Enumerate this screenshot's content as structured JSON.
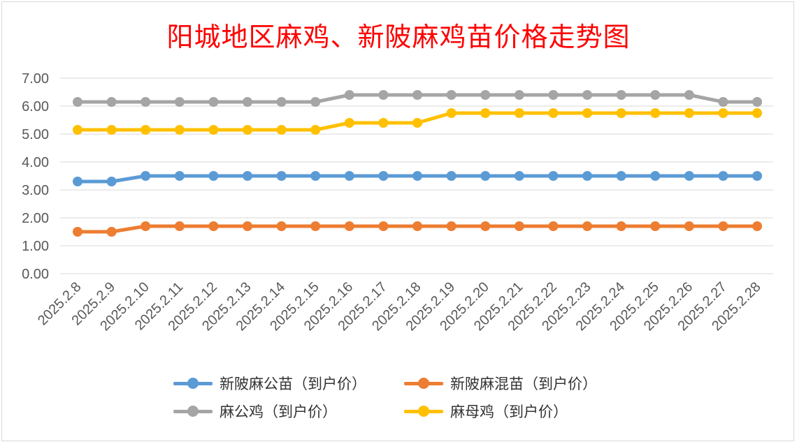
{
  "colors": {
    "blue": "#5b9bd5",
    "orange": "#ed7d31",
    "gray": "#a5a5a5",
    "yellow": "#ffc000",
    "title": "#ff0000",
    "grid": "#d9d9d9"
  },
  "chart_data": {
    "type": "line",
    "title": "阳城地区麻鸡、新陂麻鸡苗价格走势图",
    "xlabel": "",
    "ylabel": "",
    "ylim": [
      0,
      7
    ],
    "yticks": [
      "0.00",
      "1.00",
      "2.00",
      "3.00",
      "4.00",
      "5.00",
      "6.00",
      "7.00"
    ],
    "grid": true,
    "legend_position": "bottom",
    "categories": [
      "2025.2.8",
      "2025.2.9",
      "2025.2.10",
      "2025.2.11",
      "2025.2.12",
      "2025.2.13",
      "2025.2.14",
      "2025.2.15",
      "2025.2.16",
      "2025.2.17",
      "2025.2.18",
      "2025.2.19",
      "2025.2.20",
      "2025.2.21",
      "2025.2.22",
      "2025.2.23",
      "2025.2.24",
      "2025.2.25",
      "2025.2.26",
      "2025.2.27",
      "2025.2.28"
    ],
    "series": [
      {
        "name": "新陂麻公苗（到户价）",
        "color": "#5b9bd5",
        "values": [
          3.3,
          3.3,
          3.5,
          3.5,
          3.5,
          3.5,
          3.5,
          3.5,
          3.5,
          3.5,
          3.5,
          3.5,
          3.5,
          3.5,
          3.5,
          3.5,
          3.5,
          3.5,
          3.5,
          3.5,
          3.5
        ]
      },
      {
        "name": "新陂麻混苗（到户价）",
        "color": "#ed7d31",
        "values": [
          1.5,
          1.5,
          1.7,
          1.7,
          1.7,
          1.7,
          1.7,
          1.7,
          1.7,
          1.7,
          1.7,
          1.7,
          1.7,
          1.7,
          1.7,
          1.7,
          1.7,
          1.7,
          1.7,
          1.7,
          1.7
        ]
      },
      {
        "name": "麻公鸡（到户价）",
        "color": "#a5a5a5",
        "values": [
          6.15,
          6.15,
          6.15,
          6.15,
          6.15,
          6.15,
          6.15,
          6.15,
          6.4,
          6.4,
          6.4,
          6.4,
          6.4,
          6.4,
          6.4,
          6.4,
          6.4,
          6.4,
          6.4,
          6.15,
          6.15
        ]
      },
      {
        "name": "麻母鸡（到户价）",
        "color": "#ffc000",
        "values": [
          5.15,
          5.15,
          5.15,
          5.15,
          5.15,
          5.15,
          5.15,
          5.15,
          5.4,
          5.4,
          5.4,
          5.75,
          5.75,
          5.75,
          5.75,
          5.75,
          5.75,
          5.75,
          5.75,
          5.75,
          5.75
        ]
      }
    ]
  }
}
